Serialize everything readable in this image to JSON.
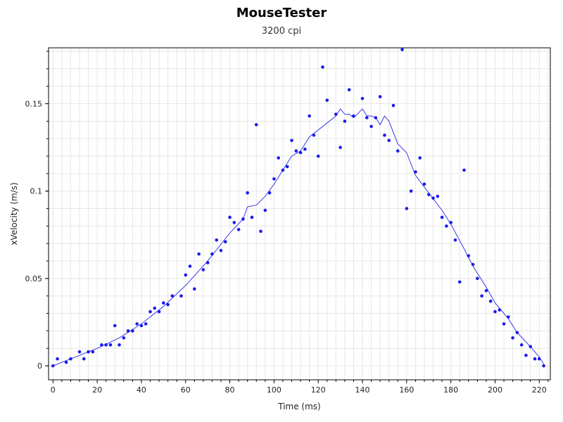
{
  "chart_data": {
    "type": "scatter",
    "title": "MouseTester",
    "subtitle": "3200 cpi",
    "xlabel": "Time (ms)",
    "ylabel": "xVelocity (m/s)",
    "xlim": [
      -2,
      225
    ],
    "ylim": [
      -0.008,
      0.182
    ],
    "xticks": [
      0,
      20,
      40,
      60,
      80,
      100,
      120,
      140,
      160,
      180,
      200,
      220
    ],
    "xtick_labels": [
      "0",
      "20",
      "40",
      "60",
      "80",
      "100",
      "120",
      "140",
      "160",
      "180",
      "200",
      "220"
    ],
    "yticks": [
      0,
      0.05,
      0.1,
      0.15
    ],
    "ytick_labels": [
      "0",
      "0.05",
      "0.1",
      "0.15"
    ],
    "grid": true,
    "colors": {
      "points": "#1a1aee",
      "line": "#3a3aee",
      "grid": "#e6e6e6",
      "axis": "#000000"
    },
    "series": [
      {
        "type": "scatter",
        "x": [
          0,
          2,
          6,
          8,
          12,
          14,
          16,
          18,
          22,
          24,
          26,
          28,
          30,
          32,
          34,
          36,
          38,
          40,
          42,
          44,
          46,
          48,
          50,
          52,
          54,
          58,
          60,
          62,
          64,
          66,
          68,
          70,
          72,
          74,
          76,
          78,
          80,
          82,
          84,
          86,
          88,
          90,
          92,
          94,
          96,
          98,
          100,
          102,
          104,
          106,
          108,
          110,
          112,
          114,
          116,
          118,
          120,
          122,
          124,
          128,
          130,
          132,
          134,
          136,
          140,
          142,
          144,
          146,
          148,
          150,
          152,
          154,
          156,
          158,
          160,
          162,
          164,
          166,
          168,
          170,
          172,
          174,
          176,
          178,
          180,
          182,
          184,
          186,
          188,
          190,
          192,
          194,
          196,
          198,
          200,
          202,
          204,
          206,
          208,
          210,
          212,
          214,
          216,
          218,
          220,
          222
        ],
        "y": [
          0,
          0.004,
          0.002,
          0.004,
          0.008,
          0.004,
          0.008,
          0.008,
          0.012,
          0.012,
          0.012,
          0.023,
          0.012,
          0.016,
          0.02,
          0.02,
          0.024,
          0.023,
          0.024,
          0.031,
          0.033,
          0.031,
          0.036,
          0.035,
          0.04,
          0.04,
          0.052,
          0.057,
          0.044,
          0.064,
          0.055,
          0.059,
          0.064,
          0.072,
          0.066,
          0.071,
          0.085,
          0.082,
          0.078,
          0.084,
          0.099,
          0.085,
          0.138,
          0.077,
          0.089,
          0.099,
          0.107,
          0.119,
          0.112,
          0.114,
          0.129,
          0.123,
          0.122,
          0.124,
          0.143,
          0.132,
          0.12,
          0.171,
          0.152,
          0.144,
          0.125,
          0.14,
          0.158,
          0.143,
          0.153,
          0.142,
          0.137,
          0.142,
          0.154,
          0.132,
          0.129,
          0.149,
          0.123,
          0.181,
          0.09,
          0.1,
          0.111,
          0.119,
          0.104,
          0.098,
          0.096,
          0.097,
          0.085,
          0.08,
          0.082,
          0.072,
          0.048,
          0.112,
          0.063,
          0.058,
          0.05,
          0.04,
          0.043,
          0.037,
          0.031,
          0.032,
          0.024,
          0.028,
          0.016,
          0.019,
          0.012,
          0.006,
          0.011,
          0.004,
          0.004,
          0
        ]
      },
      {
        "type": "line",
        "x": [
          0,
          10,
          20,
          30,
          40,
          50,
          60,
          70,
          80,
          86,
          88,
          92,
          96,
          100,
          104,
          108,
          112,
          116,
          120,
          124,
          128,
          130,
          132,
          134,
          136,
          140,
          142,
          144,
          146,
          148,
          150,
          152,
          156,
          160,
          164,
          170,
          176,
          180,
          186,
          190,
          196,
          200,
          206,
          210,
          216,
          220,
          222
        ],
        "y": [
          0,
          0.005,
          0.01,
          0.016,
          0.024,
          0.034,
          0.046,
          0.06,
          0.076,
          0.084,
          0.091,
          0.092,
          0.097,
          0.104,
          0.112,
          0.12,
          0.123,
          0.131,
          0.135,
          0.139,
          0.143,
          0.147,
          0.144,
          0.144,
          0.142,
          0.147,
          0.143,
          0.143,
          0.142,
          0.138,
          0.143,
          0.14,
          0.127,
          0.122,
          0.109,
          0.099,
          0.089,
          0.081,
          0.067,
          0.057,
          0.045,
          0.036,
          0.027,
          0.019,
          0.011,
          0.005,
          0.001
        ]
      }
    ]
  }
}
